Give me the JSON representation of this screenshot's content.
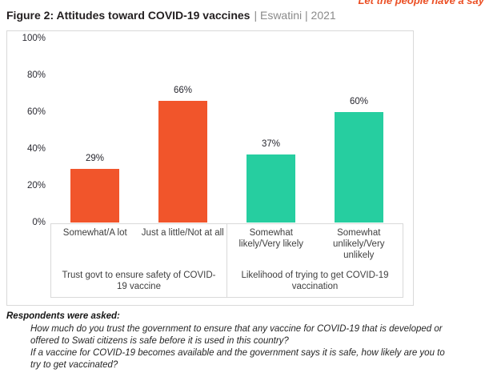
{
  "slogan": "Let the people have a say",
  "title": {
    "main": "Figure 2: Attitudes toward COVID-19 vaccines",
    "suffix": "| Eswatini | 2021"
  },
  "chart_data": {
    "type": "bar",
    "title": "Figure 2: Attitudes toward COVID-19 vaccines | Eswatini | 2021",
    "xlabel": "",
    "ylabel": "",
    "ylim": [
      0,
      100
    ],
    "grid": false,
    "legend": "none",
    "value_suffix": "%",
    "yticks": [
      {
        "label": "100%",
        "value": 100
      },
      {
        "label": "80%",
        "value": 80
      },
      {
        "label": "60%",
        "value": 60
      },
      {
        "label": "40%",
        "value": 40
      },
      {
        "label": "20%",
        "value": 20
      },
      {
        "label": "0%",
        "value": 0
      }
    ],
    "groups": [
      {
        "label": "Trust govt to ensure safety of COVID-19 vaccine",
        "bar_color": "#F1552B",
        "categories": [
          "Somewhat/A lot",
          "Just a little/Not at all"
        ],
        "values": [
          29,
          66
        ]
      },
      {
        "label": "Likelihood of trying to get COVID-19 vaccination",
        "bar_color": "#26CEA0",
        "categories": [
          "Somewhat likely/Very likely",
          "Somewhat unlikely/Very unlikely"
        ],
        "values": [
          37,
          60
        ]
      }
    ]
  },
  "footer": {
    "heading": "Respondents were asked:",
    "questions": [
      "How much do you trust the government to ensure that any vaccine for COVID-19 that is developed or offered to Swati citizens is safe before it is used in this country?",
      "If a vaccine for COVID-19 becomes available and the government says it is safe, how likely are you to try to get vaccinated?"
    ]
  },
  "colors": {
    "trust_bars": "#F1552B",
    "likelihood_bars": "#26CEA0",
    "slogan": "#EB4E23",
    "title_text": "#231F20",
    "title_suffix_text": "#8A8A8A",
    "border": "#D9D9D9"
  }
}
